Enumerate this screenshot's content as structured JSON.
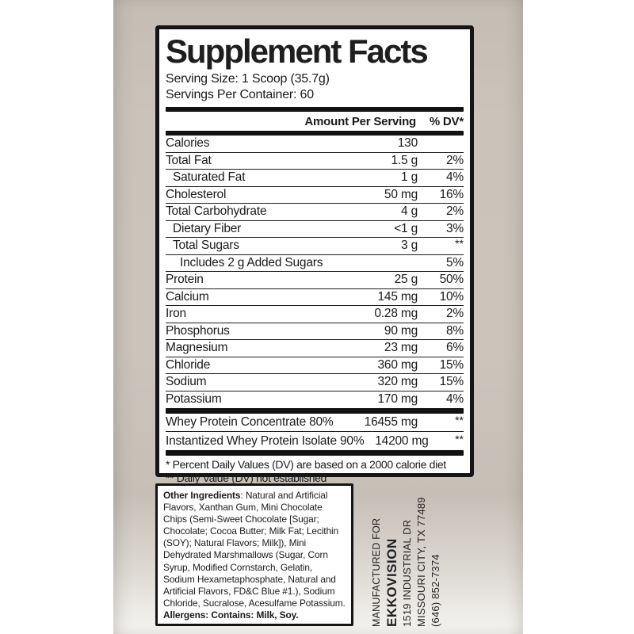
{
  "panel": {
    "title": "Supplement Facts",
    "serving_size": "Serving Size: 1 Scoop (35.7g)",
    "servings_per_container": "Servings Per Container: 60",
    "columns": {
      "amount": "Amount Per Serving",
      "dv": "% DV*"
    },
    "rows": [
      {
        "name": "Calories",
        "amount": "130",
        "dv": "",
        "indent": 0
      },
      {
        "name": "Total Fat",
        "amount": "1.5 g",
        "dv": "2%",
        "indent": 0
      },
      {
        "name": "Saturated Fat",
        "amount": "1 g",
        "dv": "4%",
        "indent": 1
      },
      {
        "name": "Cholesterol",
        "amount": "50 mg",
        "dv": "16%",
        "indent": 0
      },
      {
        "name": "Total Carbohydrate",
        "amount": "4 g",
        "dv": "2%",
        "indent": 0
      },
      {
        "name": "Dietary Fiber",
        "amount": "<1 g",
        "dv": "3%",
        "indent": 1
      },
      {
        "name": "Total Sugars",
        "amount": "3 g",
        "dv": "**",
        "indent": 1
      },
      {
        "name": "Includes 2 g Added Sugars",
        "amount": "",
        "dv": "5%",
        "indent": 2
      },
      {
        "name": "Protein",
        "amount": "25 g",
        "dv": "50%",
        "indent": 0
      },
      {
        "name": "Calcium",
        "amount": "145 mg",
        "dv": "10%",
        "indent": 0
      },
      {
        "name": "Iron",
        "amount": "0.28 mg",
        "dv": "2%",
        "indent": 0
      },
      {
        "name": "Phosphorus",
        "amount": "90 mg",
        "dv": "8%",
        "indent": 0
      },
      {
        "name": "Magnesium",
        "amount": "23 mg",
        "dv": "6%",
        "indent": 0
      },
      {
        "name": "Chloride",
        "amount": "360 mg",
        "dv": "15%",
        "indent": 0
      },
      {
        "name": "Sodium",
        "amount": "320 mg",
        "dv": "15%",
        "indent": 0
      },
      {
        "name": "Potassium",
        "amount": "170 mg",
        "dv": "4%",
        "indent": 0
      }
    ],
    "blend_rows": [
      {
        "name": "Whey Protein Concentrate 80%",
        "amount": "16455 mg",
        "dv": "**"
      },
      {
        "name": "Instantized Whey Protein Isolate 90%",
        "amount": "14200 mg",
        "dv": "**"
      }
    ],
    "footnotes": [
      "* Percent Daily Values (DV) are based on a 2000 calorie diet",
      "** Daily Value (DV) not established"
    ]
  },
  "ingredients": {
    "label": "Other Ingredients",
    "text": ": Natural and Artificial Flavors, Xanthan Gum, Mini Chocolate Chips (Semi-Sweet Chocolate [Sugar; Chocolate; Cocoa Butter; Milk Fat; Lecithin (SOY); Natural Flavors; Milk]), Mini Dehydrated Marshmallows (Sugar, Corn Syrup, Modified Cornstarch, Gelatin, Sodium Hexametaphosphate, Natural and Artificial Flavors, FD&C Blue #1.), Sodium Chloride, Sucralose, Acesulfame Potassium.",
    "allergens": "Allergens: Contains: Milk, Soy."
  },
  "manufacturer": {
    "line1": "MANUFACTURED FOR",
    "brand": "EKKOVISION",
    "address1": "1519 INDUSTRIAL DR",
    "address2": "MISSOURI CITY, TX 77489",
    "phone": "(646) 852-7374"
  },
  "colors": {
    "panel_background": "#ffffff",
    "panel_border": "#151515",
    "photo_band": "#cac3ba",
    "photo_fade_bottom": "#f4f2ef",
    "text": "#1a1a1a"
  }
}
